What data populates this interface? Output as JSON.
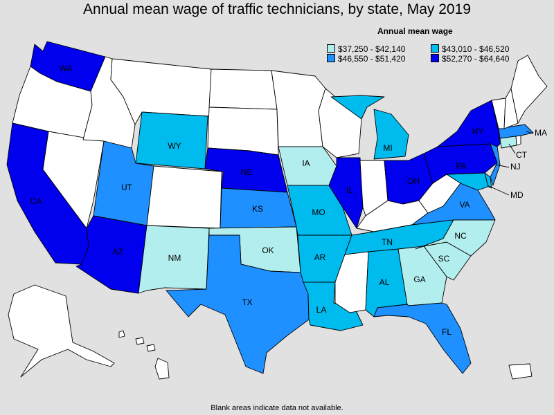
{
  "title": "Annual mean wage of traffic technicians, by state, May 2019",
  "legend": {
    "title": "Annual mean wage",
    "bins": [
      {
        "label": "$37,250 - $42,140",
        "color": "#b3eeee"
      },
      {
        "label": "$43,010 - $46,520",
        "color": "#00bbee"
      },
      {
        "label": "$46,550 - $51,420",
        "color": "#1e90ff"
      },
      {
        "label": "$52,270 - $64,640",
        "color": "#0000ee"
      }
    ]
  },
  "no_data_color": "#ffffff",
  "footnote": "Blank areas indicate data not available.",
  "states": {
    "WA": {
      "label": "WA",
      "bin": 3
    },
    "OR": {
      "bin": null
    },
    "CA": {
      "label": "CA",
      "bin": 3
    },
    "NV": {
      "bin": null
    },
    "ID": {
      "bin": null
    },
    "MT": {
      "bin": null
    },
    "WY": {
      "label": "WY",
      "bin": 1
    },
    "UT": {
      "label": "UT",
      "bin": 2
    },
    "AZ": {
      "label": "AZ",
      "bin": 3
    },
    "CO": {
      "bin": null
    },
    "NM": {
      "label": "NM",
      "bin": 0
    },
    "ND": {
      "bin": null
    },
    "SD": {
      "bin": null
    },
    "NE": {
      "label": "NE",
      "bin": 3
    },
    "KS": {
      "label": "KS",
      "bin": 2
    },
    "OK": {
      "label": "OK",
      "bin": 0
    },
    "TX": {
      "label": "TX",
      "bin": 2
    },
    "MN": {
      "bin": null
    },
    "IA": {
      "label": "IA",
      "bin": 0
    },
    "MO": {
      "label": "MO",
      "bin": 1
    },
    "AR": {
      "label": "AR",
      "bin": 1
    },
    "LA": {
      "label": "LA",
      "bin": 1
    },
    "WI": {
      "bin": null
    },
    "IL": {
      "label": "IL",
      "bin": 3
    },
    "MI": {
      "label": "MI",
      "bin": 1
    },
    "IN": {
      "bin": null
    },
    "OH": {
      "label": "OH",
      "bin": 3
    },
    "KY": {
      "bin": null
    },
    "TN": {
      "label": "TN",
      "bin": 1
    },
    "MS": {
      "bin": null
    },
    "AL": {
      "label": "AL",
      "bin": 1
    },
    "GA": {
      "label": "GA",
      "bin": 0
    },
    "FL": {
      "label": "FL",
      "bin": 2
    },
    "SC": {
      "label": "SC",
      "bin": 0
    },
    "NC": {
      "label": "NC",
      "bin": 0
    },
    "VA": {
      "label": "VA",
      "bin": 2
    },
    "WV": {
      "bin": null
    },
    "MD": {
      "label": "MD",
      "bin": 1
    },
    "DE": {
      "bin": 1
    },
    "PA": {
      "label": "PA",
      "bin": 3
    },
    "NJ": {
      "label": "NJ",
      "bin": 2
    },
    "NY": {
      "label": "NY",
      "bin": 3
    },
    "CT": {
      "label": "CT",
      "bin": 0
    },
    "RI": {
      "bin": null
    },
    "MA": {
      "label": "MA",
      "bin": 2
    },
    "VT": {
      "bin": null
    },
    "NH": {
      "bin": null
    },
    "ME": {
      "bin": null
    },
    "AK": {
      "bin": null
    },
    "HI": {
      "bin": null
    },
    "PR": {
      "bin": null
    }
  }
}
